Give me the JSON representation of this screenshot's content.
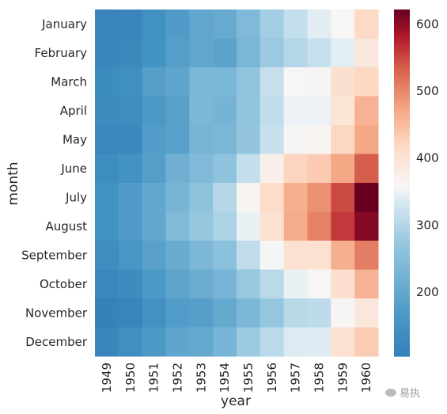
{
  "chart_data": {
    "type": "heatmap",
    "xlabel": "year",
    "ylabel": "month",
    "x_categories": [
      "1949",
      "1950",
      "1951",
      "1952",
      "1953",
      "1954",
      "1955",
      "1956",
      "1957",
      "1958",
      "1959",
      "1960"
    ],
    "y_categories": [
      "January",
      "February",
      "March",
      "April",
      "May",
      "June",
      "July",
      "August",
      "September",
      "October",
      "November",
      "December"
    ],
    "values": [
      [
        112,
        115,
        145,
        171,
        196,
        204,
        242,
        284,
        315,
        340,
        360,
        417
      ],
      [
        118,
        126,
        150,
        180,
        196,
        188,
        233,
        277,
        301,
        318,
        342,
        391
      ],
      [
        132,
        141,
        178,
        193,
        236,
        235,
        267,
        317,
        356,
        362,
        406,
        419
      ],
      [
        129,
        135,
        163,
        181,
        235,
        227,
        269,
        313,
        348,
        348,
        396,
        461
      ],
      [
        121,
        125,
        172,
        183,
        229,
        234,
        270,
        318,
        355,
        363,
        420,
        472
      ],
      [
        135,
        149,
        178,
        218,
        243,
        264,
        315,
        374,
        422,
        435,
        472,
        535
      ],
      [
        148,
        170,
        199,
        230,
        264,
        302,
        364,
        413,
        465,
        491,
        548,
        622
      ],
      [
        148,
        170,
        199,
        242,
        272,
        293,
        347,
        405,
        467,
        505,
        559,
        606
      ],
      [
        136,
        158,
        184,
        209,
        237,
        259,
        312,
        355,
        404,
        404,
        463,
        508
      ],
      [
        119,
        133,
        162,
        191,
        211,
        229,
        274,
        306,
        347,
        359,
        407,
        461
      ],
      [
        104,
        114,
        146,
        172,
        180,
        203,
        237,
        271,
        305,
        310,
        362,
        390
      ],
      [
        118,
        140,
        166,
        194,
        201,
        229,
        278,
        306,
        336,
        337,
        405,
        432
      ]
    ],
    "vmin": 104,
    "vmax": 622,
    "colormap": "RdBu_r",
    "colorbar_ticks": [
      200,
      300,
      400,
      500,
      600
    ]
  },
  "watermark": "易执"
}
